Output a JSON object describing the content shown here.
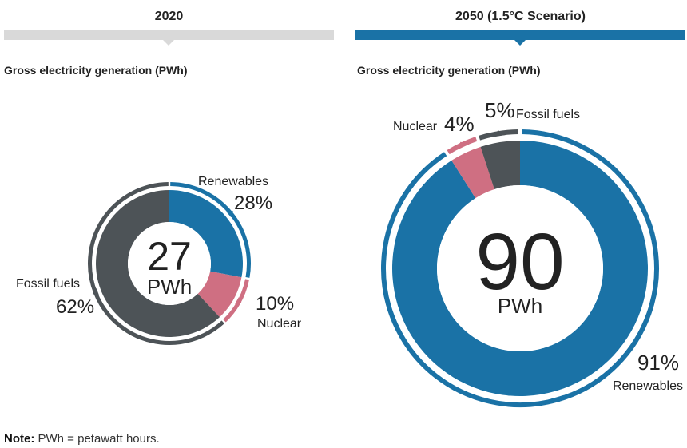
{
  "panels": [
    {
      "title": "2020",
      "subtitle": "Gross electricity generation (PWh)"
    },
    {
      "title": "2050 (1.5°C Scenario)",
      "subtitle": "Gross electricity generation (PWh)"
    }
  ],
  "note": {
    "label": "Note:",
    "text": " PWh = petawatt hours."
  },
  "colors": {
    "renewables": "#1a72a6",
    "nuclear": "#cf6f82",
    "fossil": "#4d5357",
    "header_2020": "#d9d9d9",
    "header_2050": "#1a72a6"
  },
  "chart_data": [
    {
      "type": "pie",
      "title": "2020",
      "total": "27",
      "unit": "PWh",
      "slices": [
        {
          "label": "Renewables",
          "value": 28,
          "pct": "28%"
        },
        {
          "label": "Nuclear",
          "value": 10,
          "pct": "10%"
        },
        {
          "label": "Fossil fuels",
          "value": 62,
          "pct": "62%"
        }
      ]
    },
    {
      "type": "pie",
      "title": "2050 (1.5°C Scenario)",
      "total": "90",
      "unit": "PWh",
      "slices": [
        {
          "label": "Renewables",
          "value": 91,
          "pct": "91%"
        },
        {
          "label": "Nuclear",
          "value": 4,
          "pct": "4%"
        },
        {
          "label": "Fossil fuels",
          "value": 5,
          "pct": "5%"
        }
      ]
    }
  ]
}
